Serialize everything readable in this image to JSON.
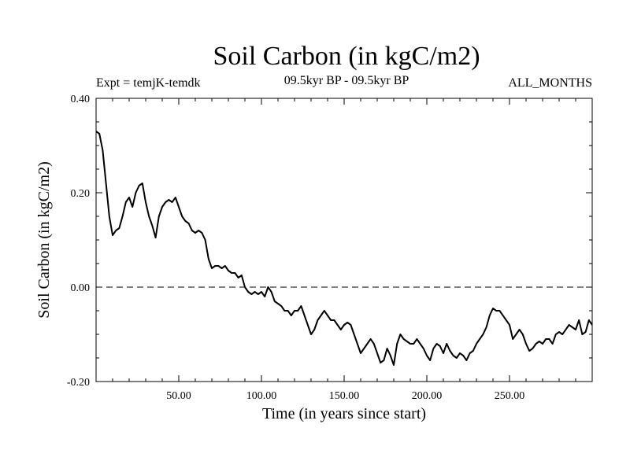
{
  "chart_data": {
    "type": "line",
    "title": "Soil Carbon (in kgC/m2)",
    "subtitle_left": "Expt = temjK-temdk",
    "subtitle_center": "09.5kyr BP - 09.5kyr BP",
    "subtitle_right": "ALL_MONTHS",
    "xlabel": "Time (in years since start)",
    "ylabel": "Soil Carbon (in kgC/m2)",
    "xlim": [
      0,
      300
    ],
    "ylim": [
      -0.2,
      0.4
    ],
    "x_ticks": [
      {
        "value": 50,
        "label": "50.00"
      },
      {
        "value": 100,
        "label": "100.00"
      },
      {
        "value": 150,
        "label": "150.00"
      },
      {
        "value": 200,
        "label": "200.00"
      },
      {
        "value": 250,
        "label": "250.00"
      }
    ],
    "y_ticks": [
      {
        "value": 0.4,
        "label": "0.40"
      },
      {
        "value": 0.2,
        "label": "0.20"
      },
      {
        "value": 0.0,
        "label": "0.00"
      },
      {
        "value": -0.2,
        "label": "-0.20"
      }
    ],
    "reference_line": {
      "value": 0.0,
      "style": "dashed"
    },
    "series": [
      {
        "name": "Soil Carbon",
        "x": [
          0,
          2,
          4,
          6,
          8,
          10,
          12,
          14,
          16,
          18,
          20,
          22,
          24,
          26,
          28,
          30,
          32,
          34,
          36,
          38,
          40,
          42,
          44,
          46,
          48,
          50,
          52,
          54,
          56,
          58,
          60,
          62,
          64,
          66,
          68,
          70,
          72,
          74,
          76,
          78,
          80,
          82,
          84,
          86,
          88,
          90,
          92,
          94,
          96,
          98,
          100,
          102,
          104,
          106,
          108,
          110,
          112,
          114,
          116,
          118,
          120,
          122,
          124,
          126,
          128,
          130,
          132,
          134,
          136,
          138,
          140,
          142,
          144,
          146,
          148,
          150,
          152,
          154,
          156,
          158,
          160,
          162,
          164,
          166,
          168,
          170,
          172,
          174,
          176,
          178,
          180,
          182,
          184,
          186,
          188,
          190,
          192,
          194,
          196,
          198,
          200,
          202,
          204,
          206,
          208,
          210,
          212,
          214,
          216,
          218,
          220,
          222,
          224,
          226,
          228,
          230,
          232,
          234,
          236,
          238,
          240,
          242,
          244,
          246,
          248,
          250,
          252,
          254,
          256,
          258,
          260,
          262,
          264,
          266,
          268,
          270,
          272,
          274,
          276,
          278,
          280,
          282,
          284,
          286,
          288,
          290,
          292,
          294,
          296,
          298,
          300
        ],
        "values": [
          0.33,
          0.325,
          0.29,
          0.22,
          0.15,
          0.11,
          0.12,
          0.125,
          0.15,
          0.18,
          0.19,
          0.17,
          0.2,
          0.215,
          0.22,
          0.18,
          0.15,
          0.13,
          0.105,
          0.15,
          0.17,
          0.18,
          0.185,
          0.18,
          0.19,
          0.17,
          0.15,
          0.14,
          0.135,
          0.12,
          0.115,
          0.12,
          0.115,
          0.1,
          0.06,
          0.04,
          0.045,
          0.045,
          0.04,
          0.045,
          0.035,
          0.03,
          0.03,
          0.02,
          0.025,
          0.0,
          -0.01,
          -0.015,
          -0.01,
          -0.015,
          -0.01,
          -0.02,
          0.0,
          -0.01,
          -0.03,
          -0.035,
          -0.04,
          -0.05,
          -0.05,
          -0.06,
          -0.05,
          -0.05,
          -0.04,
          -0.06,
          -0.08,
          -0.1,
          -0.09,
          -0.07,
          -0.06,
          -0.05,
          -0.06,
          -0.07,
          -0.07,
          -0.08,
          -0.09,
          -0.08,
          -0.075,
          -0.08,
          -0.1,
          -0.12,
          -0.14,
          -0.13,
          -0.12,
          -0.11,
          -0.12,
          -0.14,
          -0.16,
          -0.155,
          -0.13,
          -0.145,
          -0.165,
          -0.12,
          -0.1,
          -0.11,
          -0.115,
          -0.12,
          -0.12,
          -0.11,
          -0.12,
          -0.13,
          -0.145,
          -0.155,
          -0.13,
          -0.12,
          -0.125,
          -0.14,
          -0.12,
          -0.135,
          -0.145,
          -0.15,
          -0.14,
          -0.145,
          -0.155,
          -0.14,
          -0.135,
          -0.12,
          -0.11,
          -0.1,
          -0.085,
          -0.06,
          -0.045,
          -0.05,
          -0.05,
          -0.06,
          -0.07,
          -0.08,
          -0.11,
          -0.1,
          -0.09,
          -0.1,
          -0.12,
          -0.135,
          -0.13,
          -0.12,
          -0.115,
          -0.12,
          -0.11,
          -0.11,
          -0.12,
          -0.1,
          -0.095,
          -0.1,
          -0.09,
          -0.08,
          -0.085,
          -0.09,
          -0.07,
          -0.1,
          -0.095,
          -0.07,
          -0.08
        ]
      }
    ]
  }
}
